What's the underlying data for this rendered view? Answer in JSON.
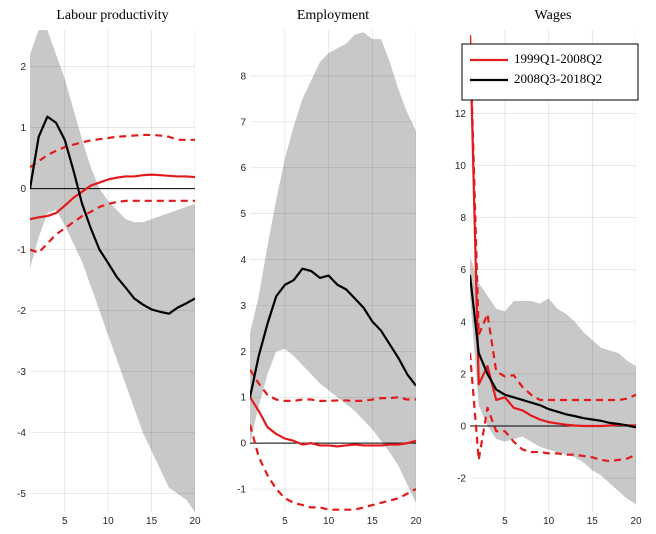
{
  "chart_data": [
    {
      "type": "line",
      "title": "Labour productivity",
      "x": [
        1,
        2,
        3,
        4,
        5,
        6,
        7,
        8,
        9,
        10,
        11,
        12,
        13,
        14,
        15,
        16,
        17,
        18,
        19,
        20
      ],
      "xlim": [
        1,
        20
      ],
      "xticks": [
        5,
        10,
        15,
        20
      ],
      "ylim": [
        -5.3,
        2.6
      ],
      "yticks": [
        -5,
        -4,
        -3,
        -2,
        -1,
        0,
        1,
        2
      ],
      "grid": true,
      "zero_line": true,
      "band": {
        "color": "#c8c8c8",
        "upper": [
          2.2,
          2.6,
          2.6,
          2.2,
          1.8,
          1.3,
          0.8,
          0.35,
          0.0,
          -0.2,
          -0.35,
          -0.5,
          -0.55,
          -0.55,
          -0.5,
          -0.45,
          -0.4,
          -0.35,
          -0.3,
          -0.25
        ],
        "lower": [
          -1.3,
          -0.8,
          -0.4,
          -0.35,
          -0.6,
          -0.9,
          -1.2,
          -1.6,
          -2.0,
          -2.4,
          -2.8,
          -3.2,
          -3.6,
          -4.0,
          -4.3,
          -4.6,
          -4.9,
          -5.0,
          -5.1,
          -5.3
        ]
      },
      "series": [
        {
          "color": "#e31a1c",
          "dash": true,
          "values": [
            0.35,
            0.45,
            0.55,
            0.62,
            0.68,
            0.72,
            0.76,
            0.79,
            0.81,
            0.83,
            0.85,
            0.86,
            0.87,
            0.88,
            0.88,
            0.87,
            0.85,
            0.8,
            0.8,
            0.8
          ]
        },
        {
          "color": "#e31a1c",
          "dash": true,
          "values": [
            -1.0,
            -1.05,
            -0.9,
            -0.75,
            -0.65,
            -0.55,
            -0.45,
            -0.38,
            -0.3,
            -0.25,
            -0.22,
            -0.2,
            -0.2,
            -0.2,
            -0.2,
            -0.2,
            -0.2,
            -0.2,
            -0.2,
            -0.2
          ]
        },
        {
          "color": "#e31a1c",
          "values": [
            -0.5,
            -0.47,
            -0.45,
            -0.4,
            -0.28,
            -0.15,
            -0.05,
            0.05,
            0.1,
            0.15,
            0.18,
            0.2,
            0.2,
            0.22,
            0.23,
            0.22,
            0.21,
            0.2,
            0.2,
            0.19
          ]
        },
        {
          "color": "#000000",
          "values": [
            0,
            0.85,
            1.18,
            1.08,
            0.8,
            0.3,
            -0.25,
            -0.65,
            -1.0,
            -1.22,
            -1.45,
            -1.62,
            -1.8,
            -1.9,
            -1.98,
            -2.02,
            -2.05,
            -1.95,
            -1.88,
            -1.8
          ]
        }
      ]
    },
    {
      "type": "line",
      "title": "Employment",
      "x": [
        1,
        2,
        3,
        4,
        5,
        6,
        7,
        8,
        9,
        10,
        11,
        12,
        13,
        14,
        15,
        16,
        17,
        18,
        19,
        20
      ],
      "xlim": [
        1,
        20
      ],
      "xticks": [
        5,
        10,
        15,
        20
      ],
      "ylim": [
        -1.5,
        9
      ],
      "yticks": [
        -1,
        0,
        1,
        2,
        3,
        4,
        5,
        6,
        7,
        8
      ],
      "grid": true,
      "zero_line": true,
      "band": {
        "color": "#c8c8c8",
        "upper": [
          2.4,
          3.2,
          4.3,
          5.3,
          6.2,
          6.9,
          7.5,
          7.9,
          8.3,
          8.5,
          8.6,
          8.7,
          8.9,
          8.95,
          8.8,
          8.8,
          8.3,
          7.7,
          7.2,
          6.8
        ],
        "lower": [
          0.0,
          0.8,
          1.5,
          2.0,
          2.05,
          1.9,
          1.7,
          1.5,
          1.3,
          1.15,
          1.0,
          0.85,
          0.7,
          0.5,
          0.3,
          0.05,
          -0.2,
          -0.5,
          -0.9,
          -1.3
        ]
      },
      "series": [
        {
          "color": "#e31a1c",
          "dash": true,
          "values": [
            1.6,
            1.3,
            1.05,
            0.95,
            0.92,
            0.92,
            0.95,
            0.95,
            0.92,
            0.92,
            0.93,
            0.93,
            0.92,
            0.92,
            0.95,
            0.98,
            0.98,
            1.0,
            0.95,
            0.95
          ]
        },
        {
          "color": "#e31a1c",
          "dash": true,
          "values": [
            0.4,
            -0.3,
            -0.7,
            -1.0,
            -1.2,
            -1.3,
            -1.35,
            -1.4,
            -1.4,
            -1.45,
            -1.45,
            -1.45,
            -1.45,
            -1.4,
            -1.35,
            -1.3,
            -1.25,
            -1.2,
            -1.1,
            -1.0
          ]
        },
        {
          "color": "#e31a1c",
          "values": [
            1.0,
            0.7,
            0.35,
            0.2,
            0.1,
            0.05,
            -0.03,
            0.0,
            -0.05,
            -0.05,
            -0.07,
            -0.05,
            -0.03,
            -0.05,
            -0.05,
            -0.05,
            -0.03,
            -0.03,
            0.0,
            0.05
          ]
        },
        {
          "color": "#000000",
          "values": [
            1.0,
            1.9,
            2.6,
            3.2,
            3.45,
            3.55,
            3.8,
            3.75,
            3.6,
            3.65,
            3.45,
            3.35,
            3.15,
            2.95,
            2.65,
            2.45,
            2.15,
            1.85,
            1.5,
            1.25
          ]
        }
      ]
    },
    {
      "type": "line",
      "title": "Wages",
      "x": [
        1,
        2,
        3,
        4,
        5,
        6,
        7,
        8,
        9,
        10,
        11,
        12,
        13,
        14,
        15,
        16,
        17,
        18,
        19,
        20
      ],
      "xlim": [
        1,
        20
      ],
      "xticks": [
        5,
        10,
        15,
        20
      ],
      "ylim": [
        -3.3,
        15.2
      ],
      "yticks": [
        -2,
        0,
        2,
        4,
        6,
        8,
        10,
        12
      ],
      "grid": true,
      "zero_line": true,
      "legend": "upper right",
      "band": {
        "color": "#c8c8c8",
        "upper": [
          6.5,
          5.5,
          5.0,
          4.5,
          4.4,
          4.8,
          4.8,
          4.8,
          4.7,
          4.9,
          4.5,
          4.3,
          4.0,
          3.6,
          3.3,
          3.0,
          2.9,
          2.8,
          2.5,
          2.3
        ],
        "lower": [
          5.0,
          0.8,
          0.0,
          -0.5,
          -0.6,
          -0.5,
          -0.4,
          -0.6,
          -0.8,
          -0.9,
          -1.0,
          -1.1,
          -1.2,
          -1.4,
          -1.7,
          -1.9,
          -2.2,
          -2.5,
          -2.8,
          -3.0
        ]
      },
      "series": [
        {
          "color": "#e31a1c",
          "dash": true,
          "values": [
            15,
            3.5,
            4.3,
            2.1,
            1.9,
            1.95,
            1.5,
            1.2,
            1.0,
            1.0,
            1.0,
            1.0,
            1.0,
            1.0,
            1.0,
            1.0,
            1.0,
            1.0,
            1.05,
            1.2
          ]
        },
        {
          "color": "#e31a1c",
          "dash": true,
          "values": [
            2.8,
            -1.3,
            0.7,
            -0.2,
            -0.2,
            -0.6,
            -0.9,
            -1.0,
            -1.0,
            -1.05,
            -1.05,
            -1.1,
            -1.1,
            -1.15,
            -1.2,
            -1.3,
            -1.35,
            -1.3,
            -1.25,
            -1.1
          ]
        },
        {
          "name": "1999Q1-2008Q2",
          "color": "#e31a1c",
          "values": [
            15,
            1.6,
            2.3,
            1.0,
            1.1,
            0.7,
            0.6,
            0.4,
            0.25,
            0.15,
            0.1,
            0.05,
            0.02,
            0.0,
            0.0,
            0.0,
            0.02,
            0.05,
            0.03,
            0.02
          ]
        },
        {
          "name": "2008Q3-2018Q2",
          "color": "#000000",
          "values": [
            5.8,
            2.8,
            2.0,
            1.4,
            1.2,
            1.1,
            1.0,
            0.9,
            0.8,
            0.65,
            0.55,
            0.45,
            0.38,
            0.3,
            0.25,
            0.2,
            0.12,
            0.08,
            0.02,
            -0.05
          ]
        }
      ]
    }
  ]
}
